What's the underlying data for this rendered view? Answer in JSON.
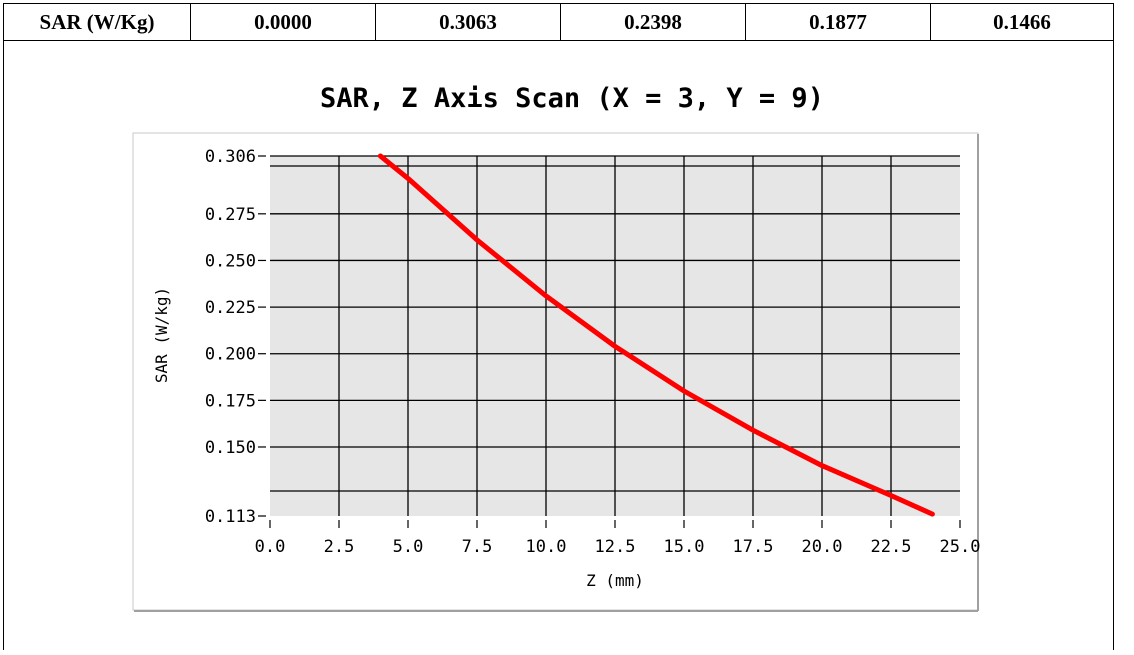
{
  "table": {
    "header": "SAR (W/Kg)",
    "values": [
      "0.0000",
      "0.3063",
      "0.2398",
      "0.1877",
      "0.1466"
    ]
  },
  "chart_data": {
    "type": "line",
    "title": "SAR, Z Axis Scan (X = 3, Y = 9)",
    "xlabel": "Z (mm)",
    "ylabel": "SAR (W/kg)",
    "xlim": [
      0.0,
      25.0
    ],
    "ylim": [
      0.113,
      0.306
    ],
    "x_ticks": [
      "0.0",
      "2.5",
      "5.0",
      "7.5",
      "10.0",
      "12.5",
      "15.0",
      "17.5",
      "20.0",
      "22.5",
      "25.0"
    ],
    "y_ticks": [
      "0.306",
      "0.275",
      "0.250",
      "0.225",
      "0.200",
      "0.175",
      "0.150",
      "0.113"
    ],
    "grid": true,
    "line_color": "#ff0000",
    "series": [
      {
        "x": [
          4.0,
          5.0,
          7.5,
          10.0,
          12.5,
          15.0,
          17.5,
          20.0,
          22.5,
          24.0
        ],
        "values": [
          0.306,
          0.294,
          0.261,
          0.231,
          0.204,
          0.18,
          0.159,
          0.14,
          0.124,
          0.114
        ]
      }
    ]
  }
}
